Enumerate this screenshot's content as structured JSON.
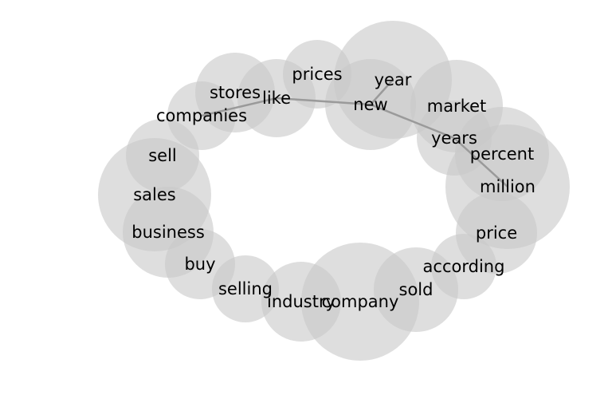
{
  "colors": {
    "circle_fill": "#c8c8c8",
    "edge": "#9a9a9a",
    "text": "#000000",
    "background": "#ffffff"
  },
  "nodes": [
    {
      "id": "prices",
      "label": "prices"
    },
    {
      "id": "year",
      "label": "year"
    },
    {
      "id": "stores",
      "label": "stores"
    },
    {
      "id": "like",
      "label": "like"
    },
    {
      "id": "new",
      "label": "new"
    },
    {
      "id": "market",
      "label": "market"
    },
    {
      "id": "companies",
      "label": "companies"
    },
    {
      "id": "years",
      "label": "years"
    },
    {
      "id": "sell",
      "label": "sell"
    },
    {
      "id": "percent",
      "label": "percent"
    },
    {
      "id": "million",
      "label": "million"
    },
    {
      "id": "sales",
      "label": "sales"
    },
    {
      "id": "business",
      "label": "business"
    },
    {
      "id": "price",
      "label": "price"
    },
    {
      "id": "buy",
      "label": "buy"
    },
    {
      "id": "according",
      "label": "according"
    },
    {
      "id": "selling",
      "label": "selling"
    },
    {
      "id": "sold",
      "label": "sold"
    },
    {
      "id": "industry",
      "label": "industry"
    },
    {
      "id": "company",
      "label": "company"
    }
  ],
  "edges": [
    {
      "source": "companies",
      "target": "like"
    },
    {
      "source": "like",
      "target": "new"
    },
    {
      "source": "new",
      "target": "year"
    },
    {
      "source": "new",
      "target": "years"
    },
    {
      "source": "years",
      "target": "million"
    }
  ]
}
